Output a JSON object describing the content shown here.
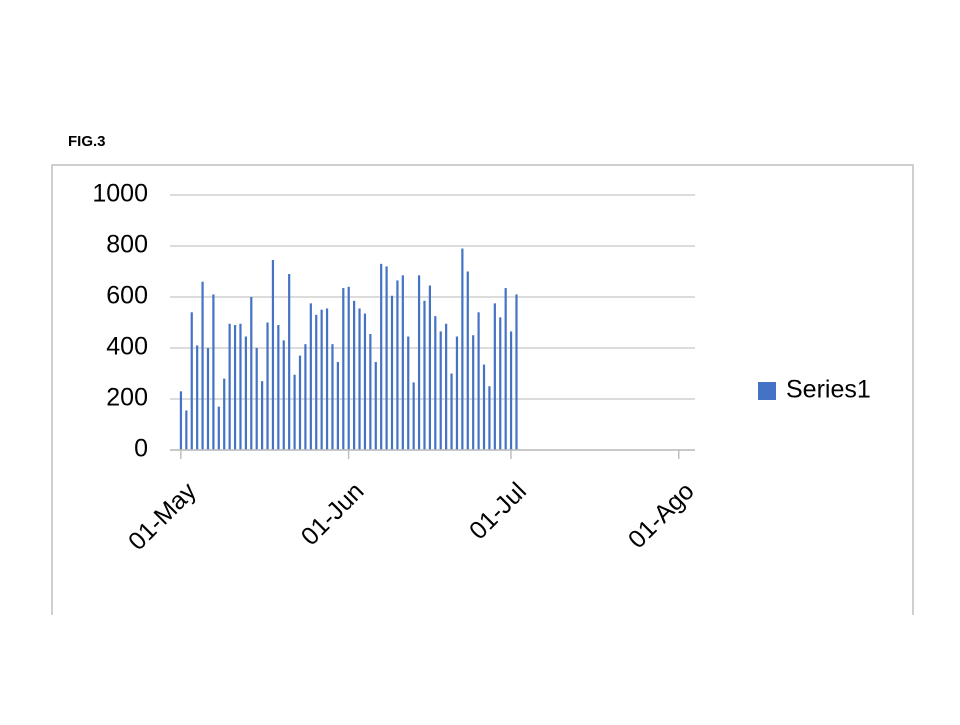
{
  "chart_data": {
    "type": "bar",
    "title": "FIG.3",
    "x": [
      0,
      1,
      2,
      3,
      4,
      5,
      6,
      7,
      8,
      9,
      10,
      11,
      12,
      13,
      14,
      15,
      16,
      17,
      18,
      19,
      20,
      21,
      22,
      23,
      24,
      25,
      26,
      27,
      28,
      29,
      30,
      31,
      32,
      33,
      34,
      35,
      36,
      37,
      38,
      39,
      40,
      41,
      42,
      43,
      44,
      45,
      46,
      47,
      48,
      49,
      50,
      51,
      52,
      53,
      54,
      55,
      56,
      57,
      58,
      59,
      60,
      61,
      62
    ],
    "series": [
      {
        "name": "Series1",
        "color": "#4472c4",
        "values": [
          230,
          155,
          540,
          410,
          660,
          400,
          610,
          170,
          280,
          495,
          490,
          495,
          445,
          600,
          400,
          270,
          500,
          745,
          490,
          430,
          690,
          295,
          370,
          415,
          575,
          530,
          550,
          555,
          415,
          345,
          635,
          640,
          585,
          555,
          535,
          455,
          345,
          730,
          720,
          605,
          665,
          685,
          445,
          265,
          685,
          585,
          645,
          525,
          465,
          495,
          300,
          445,
          790,
          700,
          450,
          540,
          335,
          250,
          575,
          520,
          635,
          465,
          610
        ]
      }
    ],
    "xlim": [
      -2,
      95
    ],
    "xticks": [
      {
        "value": 0,
        "label": "01-May"
      },
      {
        "value": 31,
        "label": "01-Jun"
      },
      {
        "value": 61,
        "label": "01-Jul"
      },
      {
        "value": 92,
        "label": "01-Ago"
      }
    ],
    "ylim": [
      0,
      1000
    ],
    "yticks": [
      0,
      200,
      400,
      600,
      800,
      1000
    ],
    "grid": true,
    "legend": "right"
  }
}
